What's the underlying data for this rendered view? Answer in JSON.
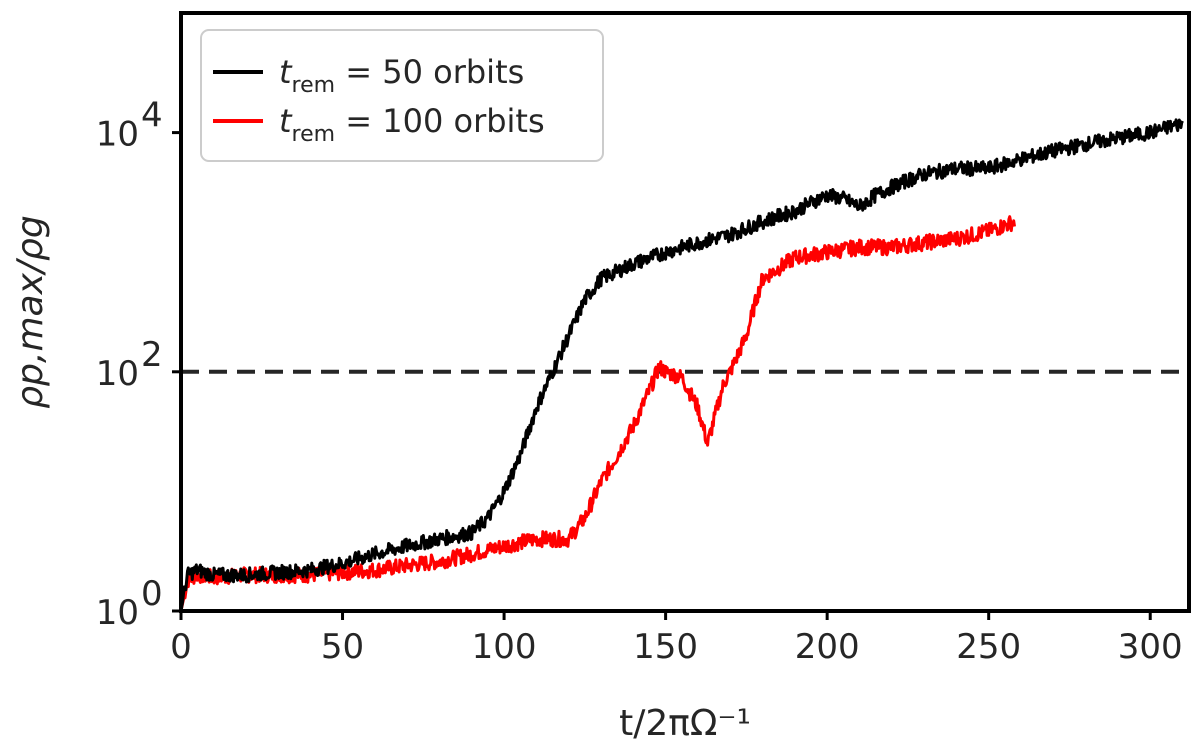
{
  "chart_data": {
    "type": "line",
    "xlabel": "t/2πΩ⁻¹",
    "ylabel": "ρp,max/ρg",
    "y_scale": "log",
    "xlim": [
      0,
      312
    ],
    "ylim": [
      1,
      100000
    ],
    "x_ticks": [
      {
        "value": 0,
        "label": "0"
      },
      {
        "value": 50,
        "label": "50"
      },
      {
        "value": 100,
        "label": "100"
      },
      {
        "value": 150,
        "label": "150"
      },
      {
        "value": 200,
        "label": "200"
      },
      {
        "value": 250,
        "label": "250"
      },
      {
        "value": 300,
        "label": "300"
      }
    ],
    "y_ticks": [
      {
        "value": 1,
        "mantissa": "10",
        "exponent": "0"
      },
      {
        "value": 100,
        "mantissa": "10",
        "exponent": "2"
      },
      {
        "value": 10000,
        "mantissa": "10",
        "exponent": "4"
      }
    ],
    "reference_line": {
      "y": 100,
      "style": "dashed",
      "color": "#262626"
    },
    "legend_position": "top-left",
    "series": [
      {
        "name": "t_rem = 50 orbits",
        "legend_symbol": "t",
        "legend_subscript": "rem",
        "legend_rest": " = 50 orbits",
        "color": "#000000",
        "noise": 0.12,
        "x": [
          0,
          2,
          5,
          10,
          20,
          30,
          40,
          50,
          60,
          70,
          80,
          90,
          95,
          100,
          105,
          110,
          115,
          120,
          125,
          130,
          140,
          150,
          160,
          170,
          180,
          185,
          190,
          195,
          200,
          205,
          210,
          215,
          220,
          225,
          230,
          240,
          250,
          260,
          270,
          280,
          290,
          300,
          310
        ],
        "y": [
          1,
          2,
          2.2,
          2,
          2,
          2.1,
          2.2,
          2.5,
          3,
          3.5,
          4,
          4.5,
          6,
          10,
          20,
          50,
          100,
          200,
          400,
          600,
          800,
          1000,
          1200,
          1400,
          1800,
          2000,
          2200,
          2600,
          3000,
          2800,
          2400,
          3000,
          3500,
          4000,
          4500,
          5000,
          5000,
          6000,
          7000,
          8000,
          9000,
          10000,
          12000
        ]
      },
      {
        "name": "t_rem = 100 orbits",
        "legend_symbol": "t",
        "legend_subscript": "rem",
        "legend_rest": " = 100 orbits",
        "color": "#ff0000",
        "noise": 0.13,
        "x": [
          0,
          2,
          5,
          10,
          20,
          30,
          40,
          50,
          60,
          70,
          80,
          90,
          100,
          110,
          120,
          125,
          130,
          135,
          140,
          145,
          148,
          150,
          155,
          160,
          163,
          165,
          168,
          170,
          175,
          178,
          180,
          190,
          200,
          210,
          220,
          230,
          240,
          250,
          258
        ],
        "y": [
          1,
          1.8,
          2,
          1.9,
          2,
          2,
          2,
          2.1,
          2.2,
          2.4,
          2.6,
          3,
          3.5,
          4,
          4,
          6,
          12,
          20,
          35,
          70,
          110,
          100,
          90,
          50,
          25,
          40,
          80,
          100,
          200,
          400,
          600,
          900,
          1000,
          1100,
          1100,
          1200,
          1300,
          1500,
          1800
        ]
      }
    ]
  }
}
